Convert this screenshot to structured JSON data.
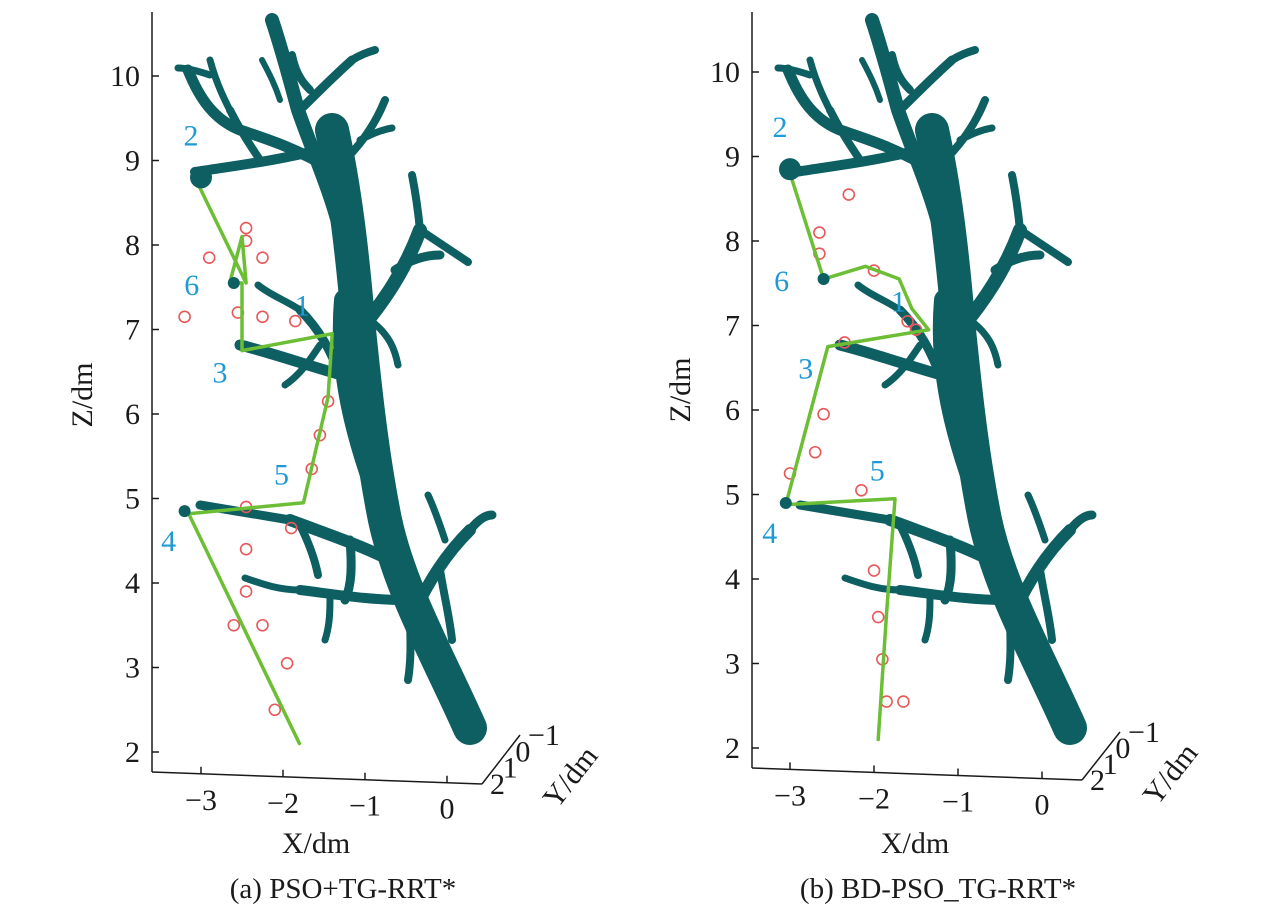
{
  "chart_data": [
    {
      "type": "scatter",
      "caption": "(a) PSO+TG-RRT*",
      "xlabel": "X/dm",
      "ylabel": "Z/dm",
      "depth_label": "Y/dm",
      "xlim": [
        -3.4,
        0.4
      ],
      "zlim": [
        1.8,
        10.7
      ],
      "x_ticks": [
        "-3",
        "-2",
        "-1",
        "0"
      ],
      "z_ticks": [
        "2",
        "3",
        "4",
        "5",
        "6",
        "7",
        "8",
        "9",
        "10"
      ],
      "depth_ticks": [
        "-1",
        "0",
        "1",
        "2"
      ],
      "waypoints": [
        {
          "label": "1",
          "x": -1.4,
          "z": 6.95,
          "dot": false
        },
        {
          "label": "2",
          "x": -3.0,
          "z": 8.8,
          "dot": true
        },
        {
          "label": "3",
          "x": -2.5,
          "z": 6.75,
          "dot": false
        },
        {
          "label": "4",
          "x": -3.2,
          "z": 4.85,
          "dot": true
        },
        {
          "label": "5",
          "x": -1.75,
          "z": 4.95,
          "dot": false
        },
        {
          "label": "6",
          "x": -2.6,
          "z": 7.55,
          "dot": true
        }
      ],
      "path": [
        {
          "x": -1.8,
          "z": 2.1
        },
        {
          "x": -3.15,
          "z": 4.82
        },
        {
          "x": -1.75,
          "z": 4.95
        },
        {
          "x": -1.45,
          "z": 6.2
        },
        {
          "x": -1.4,
          "z": 6.95
        },
        {
          "x": -2.5,
          "z": 6.75
        },
        {
          "x": -2.5,
          "z": 7.55
        },
        {
          "x": -2.65,
          "z": 7.55
        },
        {
          "x": -2.5,
          "z": 8.1
        },
        {
          "x": -2.45,
          "z": 7.55
        },
        {
          "x": -3.05,
          "z": 8.75
        }
      ],
      "obstacles": [
        {
          "x": -2.1,
          "z": 2.5
        },
        {
          "x": -1.95,
          "z": 3.05
        },
        {
          "x": -2.25,
          "z": 3.5
        },
        {
          "x": -2.6,
          "z": 3.5
        },
        {
          "x": -2.45,
          "z": 3.9
        },
        {
          "x": -2.45,
          "z": 4.4
        },
        {
          "x": -2.45,
          "z": 4.9
        },
        {
          "x": -1.9,
          "z": 4.65
        },
        {
          "x": -1.65,
          "z": 5.35
        },
        {
          "x": -1.55,
          "z": 5.75
        },
        {
          "x": -1.45,
          "z": 6.15
        },
        {
          "x": -1.85,
          "z": 7.1
        },
        {
          "x": -2.25,
          "z": 7.15
        },
        {
          "x": -2.55,
          "z": 7.2
        },
        {
          "x": -3.2,
          "z": 7.15
        },
        {
          "x": -2.9,
          "z": 7.85
        },
        {
          "x": -2.25,
          "z": 7.85
        },
        {
          "x": -2.45,
          "z": 8.05
        },
        {
          "x": -2.45,
          "z": 8.2
        }
      ]
    },
    {
      "type": "scatter",
      "caption": "(b) BD-PSO_TG-RRT*",
      "xlabel": "X/dm",
      "ylabel": "Z/dm",
      "depth_label": "Y/dm",
      "xlim": [
        -3.4,
        0.4
      ],
      "zlim": [
        1.8,
        10.7
      ],
      "x_ticks": [
        "-3",
        "-2",
        "-1",
        "0"
      ],
      "z_ticks": [
        "2",
        "3",
        "4",
        "5",
        "6",
        "7",
        "8",
        "9",
        "10"
      ],
      "depth_ticks": [
        "-1",
        "0",
        "1",
        "2"
      ],
      "waypoints": [
        {
          "label": "1",
          "x": -1.35,
          "z": 6.95,
          "dot": false
        },
        {
          "label": "2",
          "x": -3.0,
          "z": 8.85,
          "dot": true
        },
        {
          "label": "3",
          "x": -2.55,
          "z": 6.75,
          "dot": false
        },
        {
          "label": "4",
          "x": -3.05,
          "z": 4.9,
          "dot": true
        },
        {
          "label": "5",
          "x": -1.7,
          "z": 4.95,
          "dot": false
        },
        {
          "label": "6",
          "x": -2.6,
          "z": 7.55,
          "dot": true
        }
      ],
      "path": [
        {
          "x": -1.95,
          "z": 2.1
        },
        {
          "x": -1.85,
          "z": 3.6
        },
        {
          "x": -1.75,
          "z": 4.95
        },
        {
          "x": -3.05,
          "z": 4.88
        },
        {
          "x": -2.55,
          "z": 6.75
        },
        {
          "x": -1.35,
          "z": 6.95
        },
        {
          "x": -1.55,
          "z": 7.2
        },
        {
          "x": -1.7,
          "z": 7.55
        },
        {
          "x": -2.1,
          "z": 7.7
        },
        {
          "x": -2.6,
          "z": 7.55
        },
        {
          "x": -3.0,
          "z": 8.8
        }
      ],
      "obstacles": [
        {
          "x": -1.85,
          "z": 2.55
        },
        {
          "x": -1.65,
          "z": 2.55
        },
        {
          "x": -1.9,
          "z": 3.05
        },
        {
          "x": -1.95,
          "z": 3.55
        },
        {
          "x": -2.0,
          "z": 4.1
        },
        {
          "x": -2.15,
          "z": 5.05
        },
        {
          "x": -3.0,
          "z": 5.25
        },
        {
          "x": -2.7,
          "z": 5.5
        },
        {
          "x": -2.6,
          "z": 5.95
        },
        {
          "x": -2.35,
          "z": 6.8
        },
        {
          "x": -1.5,
          "z": 6.95
        },
        {
          "x": -1.6,
          "z": 7.05
        },
        {
          "x": -2.0,
          "z": 7.65
        },
        {
          "x": -2.65,
          "z": 7.85
        },
        {
          "x": -2.65,
          "z": 8.1
        },
        {
          "x": -2.3,
          "z": 8.55
        }
      ]
    }
  ]
}
